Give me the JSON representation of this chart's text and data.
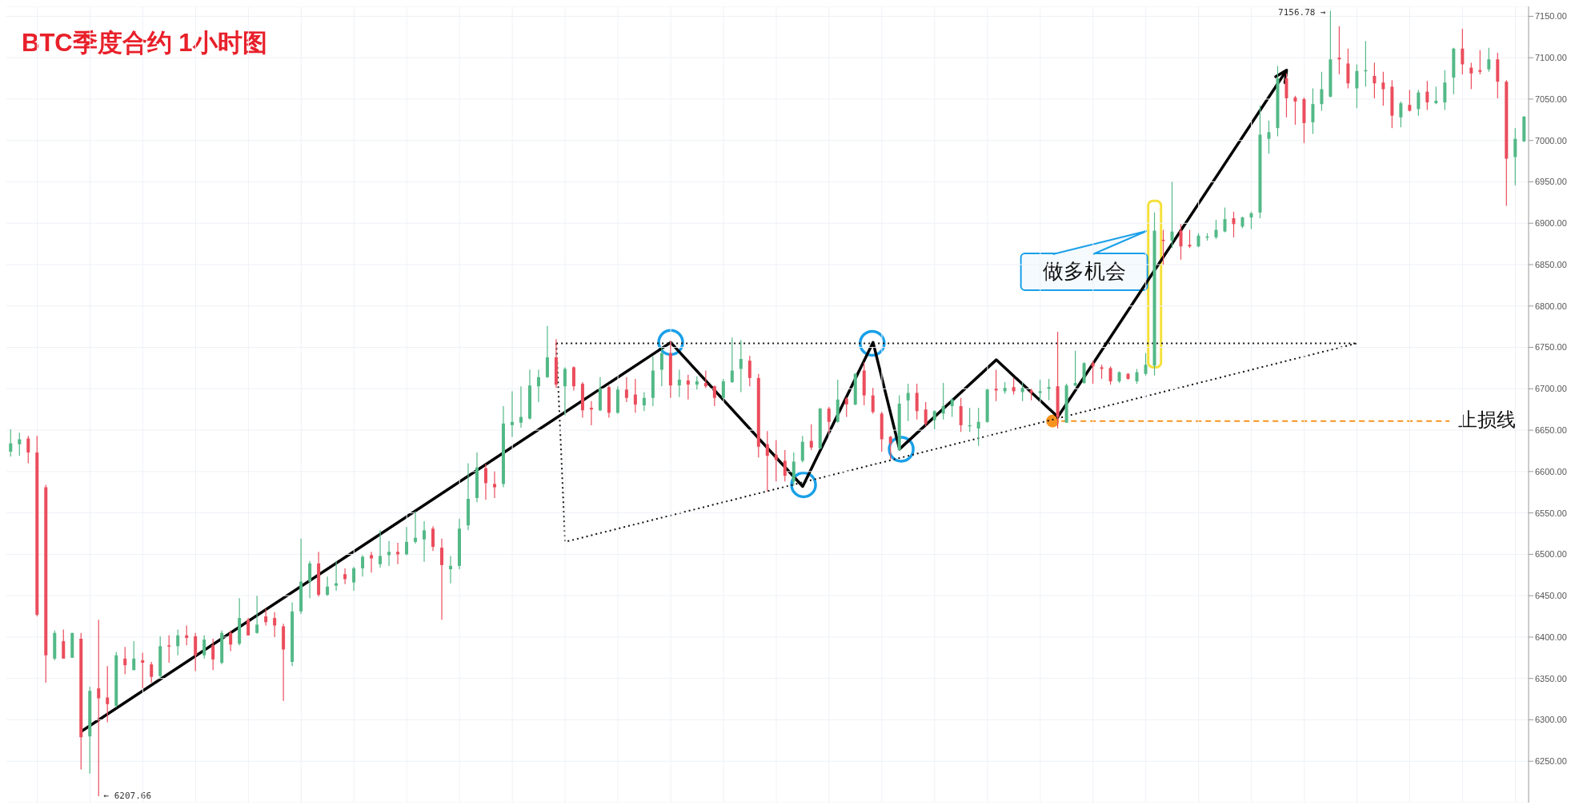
{
  "chart_data": {
    "type": "candlestick",
    "title": "BTC季度合约 1小时图",
    "categories": [
      null,
      null,
      null,
      null,
      null,
      null,
      null,
      null,
      null,
      null,
      null,
      null,
      null,
      null,
      null,
      null,
      null,
      null,
      null,
      null,
      null,
      null,
      null,
      null,
      null,
      null,
      null,
      null,
      null,
      null,
      null,
      null,
      null,
      null,
      null,
      null,
      null,
      null,
      null,
      null,
      null,
      null,
      null,
      null,
      null,
      null,
      null,
      null,
      null,
      null,
      null,
      null,
      null,
      null,
      null,
      null,
      null,
      null,
      null,
      null,
      null,
      null,
      null,
      null,
      null,
      null,
      null,
      null,
      null,
      null,
      null,
      null,
      null,
      null,
      null,
      null,
      null,
      null,
      null,
      null,
      null,
      null,
      null,
      null,
      null,
      null,
      null,
      null,
      null,
      null,
      null,
      null,
      null,
      null,
      null,
      null,
      null,
      null,
      null,
      null,
      null,
      null,
      null,
      null,
      null,
      null,
      null,
      null,
      null,
      null,
      null,
      null,
      null,
      null,
      null,
      null,
      null,
      null,
      null,
      null,
      null,
      null,
      null,
      null,
      null,
      null,
      null,
      null,
      null,
      null,
      null,
      null,
      null,
      null,
      null,
      null,
      null,
      null,
      null,
      null,
      null,
      null,
      null,
      null,
      null,
      null,
      null,
      null,
      null,
      null,
      null,
      null,
      null,
      null,
      null,
      null,
      null,
      null,
      null,
      null,
      null,
      null,
      null,
      null,
      null,
      null,
      null,
      null,
      null,
      null,
      null,
      null,
      null
    ],
    "ohlc": [
      [
        6624,
        6651,
        6618,
        6634
      ],
      [
        6633,
        6647,
        6619,
        6639
      ],
      [
        6640,
        6643,
        6610,
        6623
      ],
      [
        6623,
        6643,
        6425,
        6427
      ],
      [
        6581,
        6584,
        6345,
        6378
      ],
      [
        6374,
        6408,
        6372,
        6405
      ],
      [
        6395,
        6409,
        6374,
        6374
      ],
      [
        6375,
        6405,
        6375,
        6405
      ],
      [
        6398,
        6405,
        6240,
        6279
      ],
      [
        6280,
        6340,
        6235,
        6335
      ],
      [
        6338,
        6421,
        6207.66,
        6326
      ],
      [
        6327,
        6365,
        6297,
        6319
      ],
      [
        6317,
        6382,
        6315,
        6378
      ],
      [
        6374,
        6388,
        6355,
        6366
      ],
      [
        6360,
        6395,
        6360,
        6374
      ],
      [
        6372,
        6381,
        6338,
        6369
      ],
      [
        6367,
        6370,
        6345,
        6352
      ],
      [
        6353,
        6401,
        6350,
        6389
      ],
      [
        6390,
        6402,
        6369,
        6389
      ],
      [
        6389,
        6409,
        6378,
        6402
      ],
      [
        6402,
        6414,
        6390,
        6399
      ],
      [
        6401,
        6405,
        6359,
        6378
      ],
      [
        6378,
        6402,
        6374,
        6397
      ],
      [
        6390,
        6398,
        6360,
        6373
      ],
      [
        6369,
        6408,
        6367,
        6405
      ],
      [
        6405,
        6408,
        6383,
        6391
      ],
      [
        6392,
        6447,
        6390,
        6423
      ],
      [
        6421,
        6423,
        6402,
        6402
      ],
      [
        6405,
        6450,
        6404,
        6415
      ],
      [
        6425,
        6434,
        6414,
        6418
      ],
      [
        6423,
        6430,
        6400,
        6414
      ],
      [
        6413,
        6416,
        6323,
        6385
      ],
      [
        6370,
        6442,
        6365,
        6431
      ],
      [
        6431,
        6519,
        6428,
        6467
      ],
      [
        6467,
        6492,
        6447,
        6489
      ],
      [
        6489,
        6503,
        6449,
        6451
      ],
      [
        6451,
        6473,
        6450,
        6461
      ],
      [
        6462,
        6492,
        6456,
        6465
      ],
      [
        6476,
        6483,
        6464,
        6470
      ],
      [
        6466,
        6485,
        6456,
        6483
      ],
      [
        6483,
        6499,
        6473,
        6497
      ],
      [
        6499,
        6503,
        6478,
        6495
      ],
      [
        6488,
        6529,
        6484,
        6498
      ],
      [
        6499,
        6516,
        6486,
        6503
      ],
      [
        6503,
        6514,
        6488,
        6500
      ],
      [
        6500,
        6533,
        6499,
        6515
      ],
      [
        6515,
        6552,
        6513,
        6520
      ],
      [
        6518,
        6540,
        6491,
        6529
      ],
      [
        6531,
        6534,
        6504,
        6509
      ],
      [
        6508,
        6519,
        6421,
        6487
      ],
      [
        6482,
        6498,
        6465,
        6486
      ],
      [
        6486,
        6543,
        6482,
        6531
      ],
      [
        6535,
        6610,
        6529,
        6567
      ],
      [
        6568,
        6623,
        6563,
        6605
      ],
      [
        6604,
        6609,
        6566,
        6586
      ],
      [
        6585,
        6600,
        6568,
        6581
      ],
      [
        6585,
        6679,
        6581,
        6658
      ],
      [
        6656,
        6697,
        6642,
        6660
      ],
      [
        6659,
        6703,
        6653,
        6666
      ],
      [
        6664,
        6723,
        6663,
        6704
      ],
      [
        6703,
        6723,
        6684,
        6714
      ],
      [
        6714,
        6776,
        6713,
        6738
      ],
      [
        6738,
        6760,
        6701,
        6705
      ],
      [
        6703,
        6726,
        6668,
        6724
      ],
      [
        6726,
        6727,
        6698,
        6703
      ],
      [
        6706,
        6708,
        6665,
        6674
      ],
      [
        6677,
        6685,
        6656,
        6675
      ],
      [
        6674,
        6714,
        6673,
        6700
      ],
      [
        6702,
        6704,
        6665,
        6671
      ],
      [
        6671,
        6703,
        6670,
        6699
      ],
      [
        6699,
        6714,
        6684,
        6689
      ],
      [
        6693,
        6712,
        6671,
        6681
      ],
      [
        6680,
        6696,
        6673,
        6689
      ],
      [
        6689,
        6739,
        6679,
        6722
      ],
      [
        6723,
        6750,
        6703,
        6743
      ],
      [
        6743,
        6758,
        6689,
        6704
      ],
      [
        6704,
        6723,
        6690,
        6711
      ],
      [
        6710,
        6717,
        6687,
        6705
      ],
      [
        6705,
        6715,
        6699,
        6709
      ],
      [
        6707,
        6722,
        6701,
        6703
      ],
      [
        6703,
        6704,
        6679,
        6689
      ],
      [
        6689,
        6712,
        6688,
        6709
      ],
      [
        6708,
        6762,
        6707,
        6722
      ],
      [
        6724,
        6759,
        6696,
        6736
      ],
      [
        6734,
        6740,
        6703,
        6713
      ],
      [
        6713,
        6718,
        6617,
        6630
      ],
      [
        6633,
        6649,
        6576,
        6619
      ],
      [
        6620,
        6638,
        6588,
        6614
      ],
      [
        6613,
        6626,
        6588,
        6595
      ],
      [
        6588,
        6623,
        6583,
        6612
      ],
      [
        6613,
        6643,
        6611,
        6636
      ],
      [
        6637,
        6657,
        6626,
        6629
      ],
      [
        6628,
        6677,
        6627,
        6676
      ],
      [
        6676,
        6678,
        6646,
        6660
      ],
      [
        6660,
        6711,
        6659,
        6687
      ],
      [
        6688,
        6690,
        6666,
        6681
      ],
      [
        6681,
        6719,
        6680,
        6718
      ],
      [
        6722,
        6732,
        6680,
        6692
      ],
      [
        6692,
        6701,
        6670,
        6672
      ],
      [
        6670,
        6672,
        6624,
        6639
      ],
      [
        6642,
        6643,
        6614,
        6634
      ],
      [
        6626,
        6692,
        6625,
        6682
      ],
      [
        6686,
        6706,
        6661,
        6695
      ],
      [
        6695,
        6706,
        6663,
        6673
      ],
      [
        6675,
        6684,
        6655,
        6658
      ],
      [
        6662,
        6674,
        6651,
        6673
      ],
      [
        6670,
        6707,
        6663,
        6679
      ],
      [
        6679,
        6689,
        6666,
        6687
      ],
      [
        6679,
        6689,
        6648,
        6656
      ],
      [
        6655,
        6677,
        6648,
        6656
      ],
      [
        6652,
        6677,
        6631,
        6660
      ],
      [
        6660,
        6700,
        6659,
        6699
      ],
      [
        6700,
        6723,
        6685,
        6698
      ],
      [
        6697,
        6708,
        6694,
        6701
      ],
      [
        6702,
        6713,
        6693,
        6697
      ],
      [
        6696,
        6708,
        6685,
        6701
      ],
      [
        6698,
        6700,
        6686,
        6695
      ],
      [
        6695,
        6711,
        6686,
        6697
      ],
      [
        6700,
        6712,
        6686,
        6702
      ],
      [
        6703,
        6769,
        6652,
        6666
      ],
      [
        6659,
        6706,
        6659,
        6704
      ],
      [
        6704,
        6746,
        6703,
        6707
      ],
      [
        6707,
        6732,
        6706,
        6731
      ],
      [
        6731,
        6734,
        6706,
        6727
      ],
      [
        6726,
        6729,
        6712,
        6724
      ],
      [
        6725,
        6727,
        6705,
        6709
      ],
      [
        6709,
        6721,
        6707,
        6720
      ],
      [
        6718,
        6719,
        6711,
        6712
      ],
      [
        6709,
        6724,
        6706,
        6720
      ],
      [
        6718,
        6743,
        6716,
        6729
      ],
      [
        6728,
        6913,
        6716,
        6891
      ],
      [
        6880,
        6892,
        6850,
        6879
      ],
      [
        6879,
        6950,
        6870,
        6890
      ],
      [
        6891,
        6899,
        6856,
        6872
      ],
      [
        6874,
        6892,
        6870,
        6872
      ],
      [
        6872,
        6888,
        6871,
        6885
      ],
      [
        6883,
        6888,
        6879,
        6884
      ],
      [
        6883,
        6904,
        6881,
        6892
      ],
      [
        6890,
        6919,
        6889,
        6905
      ],
      [
        6906,
        6914,
        6883,
        6899
      ],
      [
        6896,
        6908,
        6894,
        6907
      ],
      [
        6907,
        6914,
        6893,
        6912
      ],
      [
        6913,
        7042,
        6906,
        7007
      ],
      [
        7002,
        7024,
        6984,
        7010
      ],
      [
        7015,
        7090,
        7005,
        7075
      ],
      [
        7075,
        7081,
        7028,
        7051
      ],
      [
        7052,
        7054,
        7019,
        7047
      ],
      [
        7050,
        7052,
        6997,
        7021
      ],
      [
        7022,
        7063,
        7008,
        7044
      ],
      [
        7044,
        7083,
        7036,
        7062
      ],
      [
        7053,
        7156.78,
        7052,
        7098
      ],
      [
        7100,
        7138,
        7080,
        7098
      ],
      [
        7093,
        7111,
        7063,
        7069
      ],
      [
        7063,
        7092,
        7039,
        7084
      ],
      [
        7084,
        7120,
        7065,
        7085
      ],
      [
        7078,
        7094,
        7051,
        7069
      ],
      [
        7070,
        7083,
        7042,
        7062
      ],
      [
        7065,
        7073,
        7015,
        7030
      ],
      [
        7028,
        7047,
        7016,
        7045
      ],
      [
        7043,
        7061,
        7035,
        7036
      ],
      [
        7038,
        7061,
        7030,
        7058
      ],
      [
        7059,
        7072,
        7037,
        7046
      ],
      [
        7045,
        7065,
        7044,
        7048
      ],
      [
        7046,
        7085,
        7037,
        7070
      ],
      [
        7076,
        7112,
        7056,
        7111
      ],
      [
        7111,
        7135,
        7080,
        7092
      ],
      [
        7088,
        7094,
        7062,
        7081
      ],
      [
        7085,
        7109,
        7080,
        7083
      ],
      [
        7086,
        7112,
        7083,
        7098
      ],
      [
        7098,
        7106,
        7051,
        7071
      ],
      [
        7071,
        7073,
        6921,
        6978
      ],
      [
        6980,
        7015,
        6946,
        7002
      ],
      [
        6999,
        7029,
        6998,
        7029
      ]
    ],
    "colors": [
      "#53b987",
      "#53b987",
      "#eb4d5c",
      "#eb4d5c",
      "#eb4d5c",
      "#53b987",
      "#eb4d5c",
      "#53b987",
      "#eb4d5c",
      "#53b987",
      "#eb4d5c",
      "#eb4d5c",
      "#53b987",
      "#eb4d5c",
      "#53b987",
      "#eb4d5c",
      "#eb4d5c",
      "#53b987",
      "#eb4d5c",
      "#53b987",
      "#eb4d5c",
      "#eb4d5c",
      "#53b987",
      "#eb4d5c",
      "#53b987",
      "#eb4d5c",
      "#53b987",
      "#eb4d5c",
      "#53b987",
      "#eb4d5c",
      "#eb4d5c",
      "#eb4d5c",
      "#53b987",
      "#53b987",
      "#53b987",
      "#eb4d5c",
      "#53b987",
      "#53b987",
      "#eb4d5c",
      "#53b987",
      "#53b987",
      "#eb4d5c",
      "#53b987",
      "#53b987",
      "#eb4d5c",
      "#53b987",
      "#53b987",
      "#53b987",
      "#eb4d5c",
      "#eb4d5c",
      "#53b987",
      "#53b987",
      "#53b987",
      "#53b987",
      "#eb4d5c",
      "#eb4d5c",
      "#53b987",
      "#53b987",
      "#53b987",
      "#53b987",
      "#53b987",
      "#53b987",
      "#eb4d5c",
      "#53b987",
      "#eb4d5c",
      "#eb4d5c",
      "#eb4d5c",
      "#53b987",
      "#eb4d5c",
      "#53b987",
      "#eb4d5c",
      "#eb4d5c",
      "#53b987",
      "#53b987",
      "#53b987",
      "#eb4d5c",
      "#53b987",
      "#eb4d5c",
      "#53b987",
      "#eb4d5c",
      "#eb4d5c",
      "#53b987",
      "#53b987",
      "#53b987",
      "#eb4d5c",
      "#eb4d5c",
      "#eb4d5c",
      "#eb4d5c",
      "#eb4d5c",
      "#53b987",
      "#53b987",
      "#eb4d5c",
      "#53b987",
      "#eb4d5c",
      "#53b987",
      "#eb4d5c",
      "#53b987",
      "#eb4d5c",
      "#eb4d5c",
      "#eb4d5c",
      "#eb4d5c",
      "#53b987",
      "#53b987",
      "#eb4d5c",
      "#eb4d5c",
      "#53b987",
      "#53b987",
      "#53b987",
      "#eb4d5c",
      "#53b987",
      "#53b987",
      "#53b987",
      "#eb4d5c",
      "#53b987",
      "#eb4d5c",
      "#53b987",
      "#eb4d5c",
      "#53b987",
      "#53b987",
      "#eb4d5c",
      "#53b987",
      "#53b987",
      "#53b987",
      "#eb4d5c",
      "#eb4d5c",
      "#eb4d5c",
      "#53b987",
      "#eb4d5c",
      "#53b987",
      "#53b987",
      "#53b987",
      "#eb4d5c",
      "#53b987",
      "#eb4d5c",
      "#eb4d5c",
      "#53b987",
      "#53b987",
      "#53b987",
      "#53b987",
      "#eb4d5c",
      "#53b987",
      "#53b987",
      "#53b987",
      "#53b987",
      "#53b987",
      "#eb4d5c",
      "#eb4d5c",
      "#eb4d5c",
      "#53b987",
      "#53b987",
      "#53b987",
      "#eb4d5c",
      "#eb4d5c",
      "#53b987",
      "#53b987",
      "#eb4d5c",
      "#eb4d5c",
      "#eb4d5c",
      "#53b987",
      "#eb4d5c",
      "#53b987",
      "#eb4d5c",
      "#53b987",
      "#53b987",
      "#53b987",
      "#eb4d5c",
      "#eb4d5c",
      "#eb4d5c",
      "#53b987",
      "#eb4d5c",
      "#eb4d5c",
      "#53b987",
      "#53b987"
    ],
    "series": [
      {
        "type": "line",
        "color": "#000000",
        "line_style": "solid",
        "values": [
          null,
          null,
          null,
          null,
          null,
          null,
          null,
          null,
          6286,
          null,
          null,
          null,
          null,
          null,
          null,
          null,
          null,
          null,
          null,
          null,
          null,
          null,
          null,
          null,
          null,
          null,
          null,
          null,
          null,
          null,
          null,
          null,
          null,
          null,
          null,
          null,
          null,
          null,
          null,
          null,
          null,
          null,
          null,
          null,
          null,
          null,
          null,
          null,
          null,
          null,
          null,
          null,
          null,
          null,
          null,
          null,
          null,
          null,
          null,
          null,
          null,
          null,
          null,
          null,
          null,
          null,
          null,
          null,
          null,
          null,
          null,
          null,
          null,
          null,
          null,
          6756,
          null,
          null,
          null,
          null,
          null,
          null,
          null,
          null,
          null,
          null,
          null,
          null,
          null,
          null,
          6582,
          null,
          null,
          null,
          null,
          null,
          null,
          null,
          6756,
          null,
          null,
          6627,
          null,
          null,
          null,
          null,
          null,
          null,
          null,
          null,
          null,
          null,
          6735,
          null,
          null,
          null,
          null,
          null,
          null,
          6666,
          null,
          null,
          null,
          null,
          null,
          null,
          null,
          null,
          null,
          null,
          null,
          null,
          null,
          null,
          null,
          null,
          null,
          null,
          null,
          null,
          null,
          null,
          null,
          null,
          null,
          7085,
          null,
          null,
          null,
          null,
          null,
          null,
          null,
          null,
          null,
          null,
          null,
          null,
          null,
          null,
          null,
          null,
          null,
          null,
          null,
          null,
          null,
          null,
          null,
          null,
          null,
          null,
          null
        ]
      },
      {
        "type": "line",
        "color": "#111111",
        "line_style": "dotted",
        "values": [
          null,
          null,
          null,
          null,
          null,
          null,
          null,
          null,
          null,
          null,
          null,
          null,
          null,
          null,
          null,
          null,
          null,
          null,
          null,
          null,
          null,
          null,
          null,
          null,
          null,
          null,
          null,
          null,
          null,
          null,
          null,
          null,
          null,
          null,
          null,
          null,
          null,
          null,
          null,
          null,
          null,
          null,
          null,
          null,
          null,
          null,
          null,
          null,
          null,
          null,
          null,
          null,
          null,
          null,
          null,
          null,
          null,
          null,
          null,
          null,
          null,
          null,
          6755,
          null,
          null,
          null,
          null,
          null,
          null,
          null,
          null,
          null,
          null,
          null,
          null,
          null,
          null,
          null,
          null,
          null,
          null,
          null,
          null,
          null,
          null,
          null,
          null,
          null,
          null,
          null,
          null,
          null,
          null,
          null,
          null,
          null,
          null,
          null,
          null,
          null,
          null,
          null,
          null,
          null,
          null,
          null,
          null,
          null,
          null,
          null,
          null,
          null,
          null,
          null,
          null,
          null,
          null,
          null,
          null,
          null,
          null,
          null,
          null,
          null,
          null,
          null,
          null,
          null,
          null,
          null,
          null,
          null,
          null,
          null,
          null,
          null,
          null,
          null,
          null,
          null,
          null,
          null,
          null,
          null,
          null,
          null,
          null,
          null,
          null,
          null,
          null,
          null,
          null,
          6755,
          null,
          null,
          null,
          null,
          null,
          null,
          null,
          null,
          null,
          null,
          null,
          null,
          null,
          null,
          null,
          null,
          null,
          null,
          null
        ]
      },
      {
        "type": "line",
        "color": "#111111",
        "line_style": "dotted",
        "values": [
          null,
          null,
          null,
          null,
          null,
          null,
          null,
          null,
          null,
          null,
          null,
          null,
          null,
          null,
          null,
          null,
          null,
          null,
          null,
          null,
          null,
          null,
          null,
          null,
          null,
          null,
          null,
          null,
          null,
          null,
          null,
          null,
          null,
          null,
          null,
          null,
          null,
          null,
          null,
          null,
          null,
          null,
          null,
          null,
          null,
          null,
          null,
          null,
          null,
          null,
          null,
          null,
          null,
          null,
          null,
          null,
          null,
          null,
          null,
          null,
          null,
          null,
          6755,
          6515,
          null,
          null,
          null,
          null,
          null,
          null,
          null,
          null,
          null,
          null,
          null,
          null,
          null,
          null,
          null,
          null,
          null,
          null,
          null,
          null,
          null,
          null,
          null,
          null,
          null,
          null,
          null,
          null,
          null,
          null,
          null,
          null,
          null,
          null,
          null,
          null,
          null,
          null,
          null,
          null,
          null,
          null,
          null,
          null,
          null,
          null,
          null,
          null,
          null,
          null,
          null,
          null,
          null,
          null,
          null,
          null,
          null,
          null,
          null,
          null,
          null,
          null,
          null,
          null,
          null,
          null,
          null,
          null,
          null,
          null,
          null,
          null,
          null,
          null,
          null,
          null,
          null,
          null,
          null,
          null,
          null,
          null,
          null,
          null,
          null,
          null,
          null,
          null,
          null,
          6755,
          null,
          null,
          null,
          null,
          null,
          null,
          null,
          null,
          null,
          null,
          null,
          null,
          null,
          null,
          null,
          null,
          null,
          null,
          null
        ]
      }
    ],
    "ylim": [
      6200,
      7162
    ],
    "yticks": [
      {
        "value": 6250,
        "label": "6250.00"
      },
      {
        "value": 6300,
        "label": "6300.00"
      },
      {
        "value": 6350,
        "label": "6350.00"
      },
      {
        "value": 6400,
        "label": "6400.00"
      },
      {
        "value": 6450,
        "label": "6450.00"
      },
      {
        "value": 6500,
        "label": "6500.00"
      },
      {
        "value": 6550,
        "label": "6550.00"
      },
      {
        "value": 6600,
        "label": "6600.00"
      },
      {
        "value": 6650,
        "label": "6650.00"
      },
      {
        "value": 6700,
        "label": "6700.00"
      },
      {
        "value": 6750,
        "label": "6750.00"
      },
      {
        "value": 6800,
        "label": "6800.00"
      },
      {
        "value": 6850,
        "label": "6850.00"
      },
      {
        "value": 6900,
        "label": "6900.00"
      },
      {
        "value": 6950,
        "label": "6950.00"
      },
      {
        "value": 7000,
        "label": "7000.00"
      },
      {
        "value": 7050,
        "label": "7050.00"
      },
      {
        "value": 7100,
        "label": "7100.00"
      },
      {
        "value": 7150,
        "label": "7150.00"
      }
    ],
    "tick_labels": "y",
    "grid": true,
    "ref_lines": [
      {
        "axis": "y",
        "value": 6661,
        "label": "止损线",
        "color": "#f7931e",
        "line_style": "dashed"
      }
    ],
    "annotations": [
      "做多机会",
      "7156.78 →",
      "← 6207.66"
    ]
  }
}
